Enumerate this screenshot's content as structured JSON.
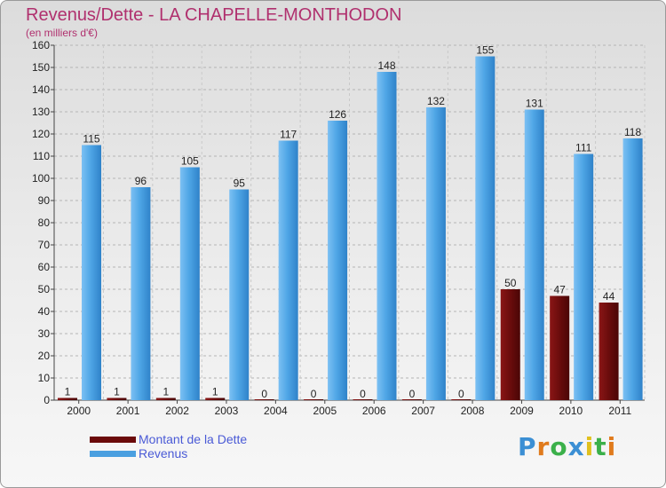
{
  "title": "Revenus/Dette - LA CHAPELLE-MONTHODON",
  "subtitle": "(en milliers d'€)",
  "brand": "Proxiti",
  "colors": {
    "title": "#b0306e",
    "dette": "#6b0a0a",
    "revenus": "#4a9fe0",
    "legend_text": "#4a5ad6",
    "brand_letters": [
      "#3b8fd4",
      "#e07b1d",
      "#3bb04a",
      "#3b8fd4",
      "#e0c01d",
      "#3bb04a",
      "#e07b1d"
    ]
  },
  "legend": [
    {
      "label": "Montant de la Dette",
      "color": "#6b0a0a"
    },
    {
      "label": "Revenus",
      "color": "#4a9fe0"
    }
  ],
  "chart_data": {
    "type": "bar",
    "categories": [
      "2000",
      "2001",
      "2002",
      "2003",
      "2004",
      "2005",
      "2006",
      "2007",
      "2008",
      "2009",
      "2010",
      "2011"
    ],
    "series": [
      {
        "name": "Montant de la Dette",
        "values": [
          1,
          1,
          1,
          1,
          0,
          0,
          0,
          0,
          0,
          50,
          47,
          44
        ]
      },
      {
        "name": "Revenus",
        "values": [
          115,
          96,
          105,
          95,
          117,
          126,
          148,
          132,
          155,
          131,
          111,
          118
        ]
      }
    ],
    "ylim": [
      0,
      160
    ],
    "yticks": [
      0,
      10,
      20,
      30,
      40,
      50,
      60,
      70,
      80,
      90,
      100,
      110,
      120,
      130,
      140,
      150,
      160
    ],
    "grid": true,
    "legend_position": "bottom-left"
  }
}
